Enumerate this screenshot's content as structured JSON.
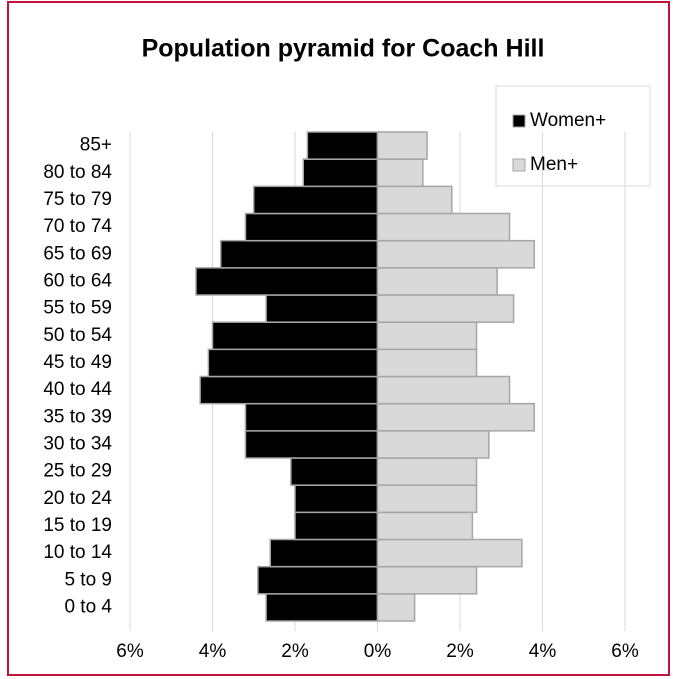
{
  "chart_data": {
    "type": "pyramid",
    "title": "Population pyramid for Coach Hill",
    "categories": [
      "0 to 4",
      "5 to 9",
      "10 to 14",
      "15 to 19",
      "20 to 24",
      "25 to 29",
      "30 to 34",
      "35 to 39",
      "40 to 44",
      "45 to 49",
      "50 to 54",
      "55 to 59",
      "60 to 64",
      "65 to 69",
      "70 to 74",
      "75 to 79",
      "80 to 84",
      "85+"
    ],
    "series": [
      {
        "name": "Women+",
        "color": "#000000",
        "values": [
          -2.7,
          -2.9,
          -2.6,
          -2.0,
          -2.0,
          -2.1,
          -3.2,
          -3.2,
          -4.3,
          -4.1,
          -4.0,
          -2.7,
          -4.4,
          -3.8,
          -3.2,
          -3.0,
          -1.8,
          -1.7
        ]
      },
      {
        "name": "Men+",
        "color": "#d9d9d9",
        "values": [
          0.9,
          2.4,
          3.5,
          2.3,
          2.4,
          2.4,
          2.7,
          3.8,
          3.2,
          2.4,
          2.4,
          3.3,
          2.9,
          3.8,
          3.2,
          1.8,
          1.1,
          1.2
        ]
      }
    ],
    "xlim": [
      -6,
      6
    ],
    "xticks": [
      {
        "value": -6,
        "label": "6%"
      },
      {
        "value": -4,
        "label": "4%"
      },
      {
        "value": -2,
        "label": "2%"
      },
      {
        "value": 0,
        "label": "0%"
      },
      {
        "value": 2,
        "label": "2%"
      },
      {
        "value": 4,
        "label": "4%"
      },
      {
        "value": 6,
        "label": "6%"
      }
    ],
    "grid": true,
    "legend": "top-right"
  }
}
